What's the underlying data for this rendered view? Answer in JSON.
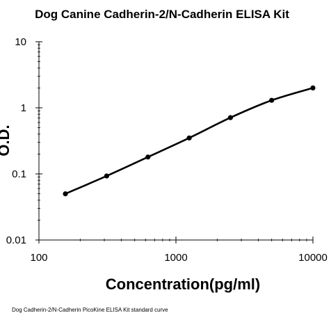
{
  "chart_data": {
    "type": "line",
    "title": "Dog Canine Cadherin-2/N-Cadherin  ELISA Kit",
    "xlabel": "Concentration(pg/ml)",
    "ylabel": "O.D.",
    "x_scale": "log",
    "y_scale": "log",
    "xlim": [
      100,
      10000
    ],
    "ylim": [
      0.01,
      10
    ],
    "x_ticks": [
      "100",
      "1000",
      "10000"
    ],
    "y_ticks": [
      "10",
      "1",
      "0.1",
      "0.01"
    ],
    "grid": false,
    "series": [
      {
        "x": [
          156,
          312,
          625,
          1250,
          2500,
          5000,
          10000
        ],
        "y": [
          0.05,
          0.093,
          0.18,
          0.35,
          0.71,
          1.3,
          2.0
        ]
      }
    ],
    "caption": "Dog Cadherin-2/N-Cadherin PicoKine ELISA Kit standard curve"
  }
}
